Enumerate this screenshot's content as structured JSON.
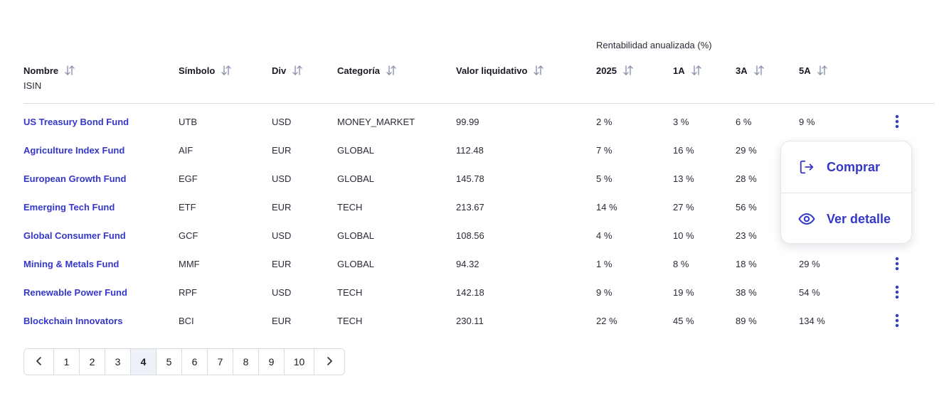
{
  "table": {
    "group_header": "Rentabilidad anualizada (%)",
    "columns": {
      "nombre": "Nombre",
      "isin": "ISIN",
      "simbolo": "Símbolo",
      "div": "Div",
      "categoria": "Categoría",
      "valor": "Valor liquidativo",
      "y2025": "2025",
      "a1": "1A",
      "a3": "3A",
      "a5": "5A"
    },
    "rows": [
      {
        "name": "US Treasury Bond Fund",
        "symbol": "UTB",
        "div": "USD",
        "category": "MONEY_MARKET",
        "nav": "99.99",
        "y2025": "2 %",
        "a1": "3 %",
        "a3": "6 %",
        "a5": "9 %"
      },
      {
        "name": "Agriculture Index Fund",
        "symbol": "AIF",
        "div": "EUR",
        "category": "GLOBAL",
        "nav": "112.48",
        "y2025": "7 %",
        "a1": "16 %",
        "a3": "29 %",
        "a5": ""
      },
      {
        "name": "European Growth Fund",
        "symbol": "EGF",
        "div": "USD",
        "category": "GLOBAL",
        "nav": "145.78",
        "y2025": "5 %",
        "a1": "13 %",
        "a3": "28 %",
        "a5": ""
      },
      {
        "name": "Emerging Tech Fund",
        "symbol": "ETF",
        "div": "EUR",
        "category": "TECH",
        "nav": "213.67",
        "y2025": "14 %",
        "a1": "27 %",
        "a3": "56 %",
        "a5": ""
      },
      {
        "name": "Global Consumer Fund",
        "symbol": "GCF",
        "div": "USD",
        "category": "GLOBAL",
        "nav": "108.56",
        "y2025": "4 %",
        "a1": "10 %",
        "a3": "23 %",
        "a5": ""
      },
      {
        "name": "Mining & Metals Fund",
        "symbol": "MMF",
        "div": "EUR",
        "category": "GLOBAL",
        "nav": "94.32",
        "y2025": "1 %",
        "a1": "8 %",
        "a3": "18 %",
        "a5": "29 %"
      },
      {
        "name": "Renewable Power Fund",
        "symbol": "RPF",
        "div": "USD",
        "category": "TECH",
        "nav": "142.18",
        "y2025": "9 %",
        "a1": "19 %",
        "a3": "38 %",
        "a5": "54 %"
      },
      {
        "name": "Blockchain Innovators",
        "symbol": "BCI",
        "div": "EUR",
        "category": "TECH",
        "nav": "230.11",
        "y2025": "22 %",
        "a1": "45 %",
        "a3": "89 %",
        "a5": "134 %"
      }
    ]
  },
  "menu": {
    "buy_label": "Comprar",
    "detail_label": "Ver detalle"
  },
  "pagination": {
    "pages": [
      "1",
      "2",
      "3",
      "4",
      "5",
      "6",
      "7",
      "8",
      "9",
      "10"
    ],
    "current": "4"
  },
  "colors": {
    "accent": "#3437c9",
    "text": "#2b2b38",
    "sort_icon": "#8a93ad",
    "border": "#d9dbe3",
    "active_page_bg": "#eef2f8"
  },
  "icons": {
    "sort": "sort-arrows-icon",
    "row_menu": "kebab-menu-icon",
    "buy": "login-arrow-icon",
    "detail": "eye-icon",
    "prev": "chevron-left-icon",
    "next": "chevron-right-icon"
  }
}
